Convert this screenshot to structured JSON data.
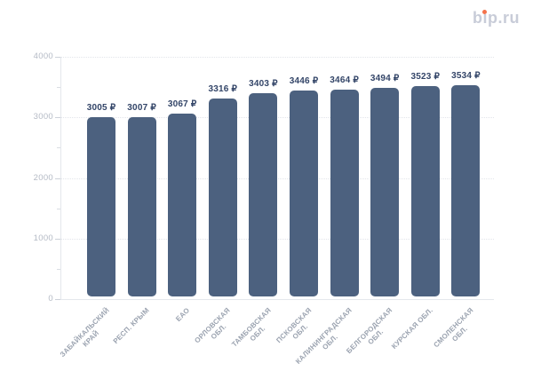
{
  "logo": {
    "text": "bip.ru",
    "text_color": "#c8ccd8",
    "dot_color": "#f4724b"
  },
  "chart_data": {
    "type": "bar",
    "title": "",
    "categories": [
      "ЗАБАЙКАЛЬСКИЙ\nКРАЙ",
      "РЕСП. КРЫМ",
      "ЕАО",
      "ОРЛОВСКАЯ\nОБЛ.",
      "ТАМБОВСКАЯ\nОБЛ.",
      "ПСКОВСКАЯ\nОБЛ.",
      "КАЛИНИНГРАДСКАЯ\nОБЛ.",
      "БЕЛГОРОДСКАЯ\nОБЛ.",
      "КУРСКАЯ ОБЛ.",
      "СМОЛЕНСКАЯ\nОБЛ."
    ],
    "values": [
      3005,
      3007,
      3067,
      3316,
      3403,
      3446,
      3464,
      3494,
      3523,
      3534
    ],
    "value_suffix": " ₽",
    "xlabel": "",
    "ylabel": "",
    "ylim": [
      0,
      4000
    ],
    "yticks": [
      0,
      1000,
      2000,
      3000,
      4000
    ],
    "minor_tick_step": 500,
    "grid": "horizontal-dotted",
    "legend": "none",
    "colors": {
      "bar": "#4c617f",
      "value_label": "#334568",
      "y_axis_label": "#b4bac5",
      "category_label": "#9ba3b0"
    }
  }
}
